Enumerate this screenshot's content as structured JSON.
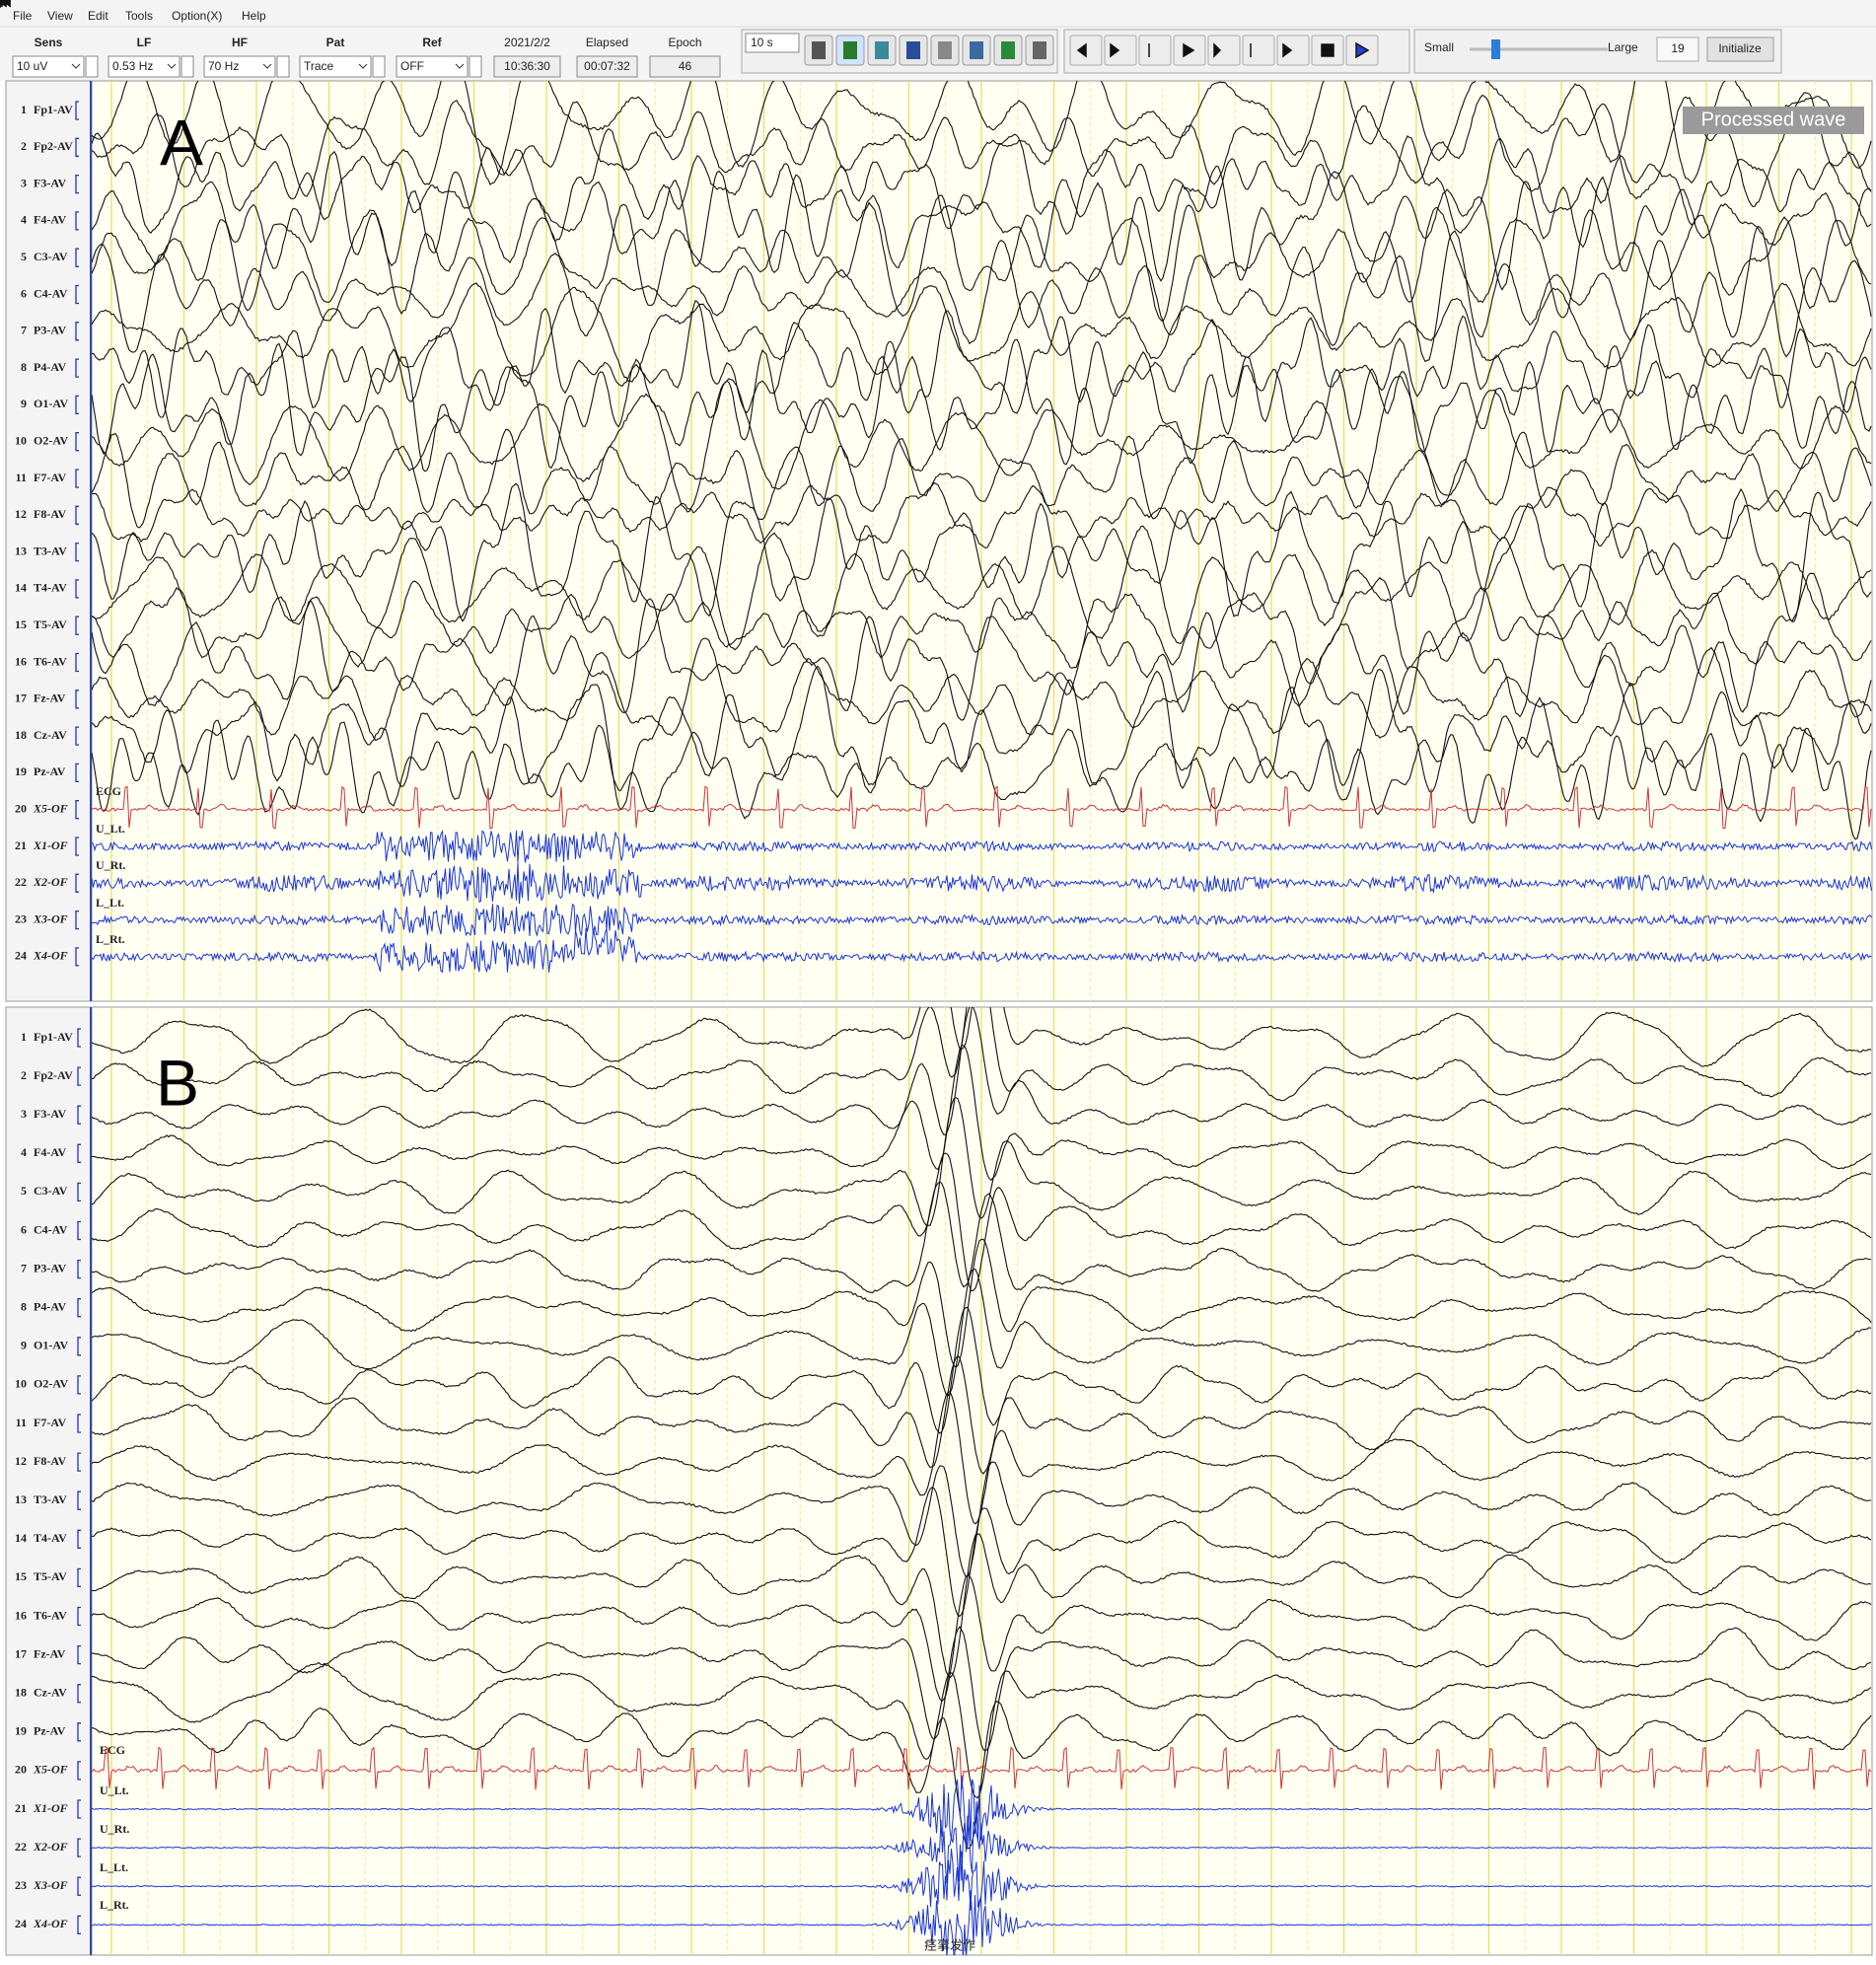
{
  "menu": [
    "File",
    "View",
    "Edit",
    "Tools",
    "Option(X)",
    "Help"
  ],
  "settings": [
    {
      "label": "Sens",
      "value": "10 uV"
    },
    {
      "label": "LF",
      "value": "0.53 Hz"
    },
    {
      "label": "HF",
      "value": "70 Hz"
    },
    {
      "label": "Pat",
      "value": "Trace"
    },
    {
      "label": "Ref",
      "value": "OFF"
    }
  ],
  "status": [
    {
      "label": "2021/2/2",
      "value": "10:36:30"
    },
    {
      "label": "Elapsed",
      "value": "00:07:32"
    },
    {
      "label": "Epoch",
      "value": "46"
    }
  ],
  "page_length": "10 s",
  "scale": {
    "min_label": "Small",
    "max_label": "Large",
    "value": "19",
    "button": "Initialize"
  },
  "channels": [
    {
      "number": 1,
      "name": "Fp1-AV"
    },
    {
      "number": 2,
      "name": "Fp2-AV"
    },
    {
      "number": 3,
      "name": "F3-AV"
    },
    {
      "number": 4,
      "name": "F4-AV"
    },
    {
      "number": 5,
      "name": "C3-AV"
    },
    {
      "number": 6,
      "name": "C4-AV"
    },
    {
      "number": 7,
      "name": "P3-AV"
    },
    {
      "number": 8,
      "name": "P4-AV"
    },
    {
      "number": 9,
      "name": "O1-AV"
    },
    {
      "number": 10,
      "name": "O2-AV"
    },
    {
      "number": 11,
      "name": "F7-AV"
    },
    {
      "number": 12,
      "name": "F8-AV"
    },
    {
      "number": 13,
      "name": "T3-AV"
    },
    {
      "number": 14,
      "name": "T4-AV"
    },
    {
      "number": 15,
      "name": "T5-AV"
    },
    {
      "number": 16,
      "name": "T6-AV"
    },
    {
      "number": 17,
      "name": "Fz-AV"
    },
    {
      "number": 18,
      "name": "Cz-AV"
    },
    {
      "number": 19,
      "name": "Pz-AV"
    },
    {
      "number": 20,
      "name": "X5-OF"
    },
    {
      "number": 21,
      "name": "X1-OF"
    },
    {
      "number": 22,
      "name": "X2-OF"
    },
    {
      "number": 23,
      "name": "X3-OF"
    },
    {
      "number": 24,
      "name": "X4-OF"
    }
  ],
  "trace_labels": [
    "ECG",
    "U_Lt.",
    "U_Rt.",
    "L_Lt.",
    "L_Rt."
  ],
  "panels": [
    {
      "label": "A",
      "overlay": "Processed wave"
    },
    {
      "label": "B",
      "annotation": "痉挛发作"
    }
  ]
}
